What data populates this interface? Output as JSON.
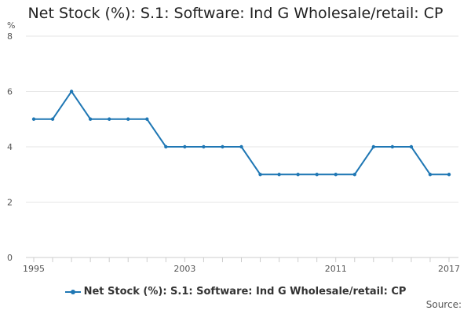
{
  "chart_data": {
    "type": "line",
    "title": "Net Stock (%): S.1: Software: Ind G Wholesale/retail: CP",
    "ylabel": "%",
    "ylim": [
      0,
      8
    ],
    "yticks": [
      0,
      2,
      4,
      6,
      8
    ],
    "xlim": [
      1995,
      2017
    ],
    "xticks": [
      1995,
      2003,
      2011,
      2017
    ],
    "grid": true,
    "legend_position": "bottom",
    "x": [
      1995,
      1996,
      1997,
      1998,
      1999,
      2000,
      2001,
      2002,
      2003,
      2004,
      2005,
      2006,
      2007,
      2008,
      2009,
      2010,
      2011,
      2012,
      2013,
      2014,
      2015,
      2016,
      2017
    ],
    "series": [
      {
        "name": "Net Stock (%): S.1: Software: Ind G Wholesale/retail: CP",
        "values": [
          5,
          5,
          6,
          5,
          5,
          5,
          5,
          4,
          4,
          4,
          4,
          4,
          3,
          3,
          3,
          3,
          3,
          3,
          4,
          4,
          4,
          3,
          3
        ],
        "color": "#1f77b4"
      }
    ]
  },
  "source_label": "Source:"
}
